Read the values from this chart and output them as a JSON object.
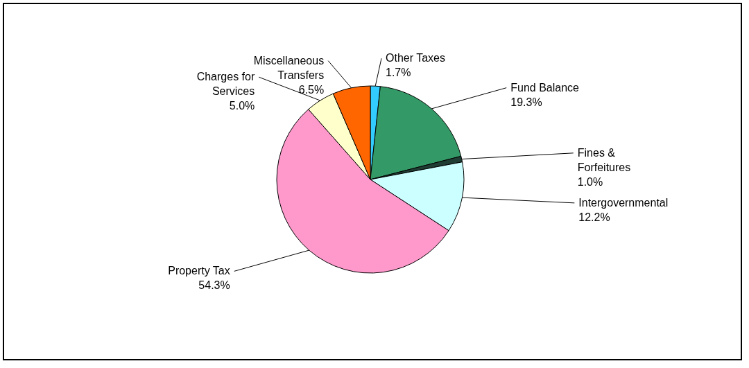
{
  "chart_data": {
    "type": "pie",
    "categories": [
      "Other Taxes",
      "Fund Balance",
      "Fines & Forfeitures",
      "Intergovernmental",
      "Property Tax",
      "Charges for Services",
      "Miscellaneous Transfers"
    ],
    "values": [
      1.7,
      19.3,
      1.0,
      12.2,
      54.3,
      5.0,
      6.5
    ],
    "colors": [
      "#33ccff",
      "#339966",
      "#1f3d33",
      "#ccffff",
      "#ff99cc",
      "#ffffcc",
      "#ff6600"
    ],
    "value_labels": [
      "1.7%",
      "19.3%",
      "1.0%",
      "12.2%",
      "54.3%",
      "5.0%",
      "6.5%"
    ]
  }
}
